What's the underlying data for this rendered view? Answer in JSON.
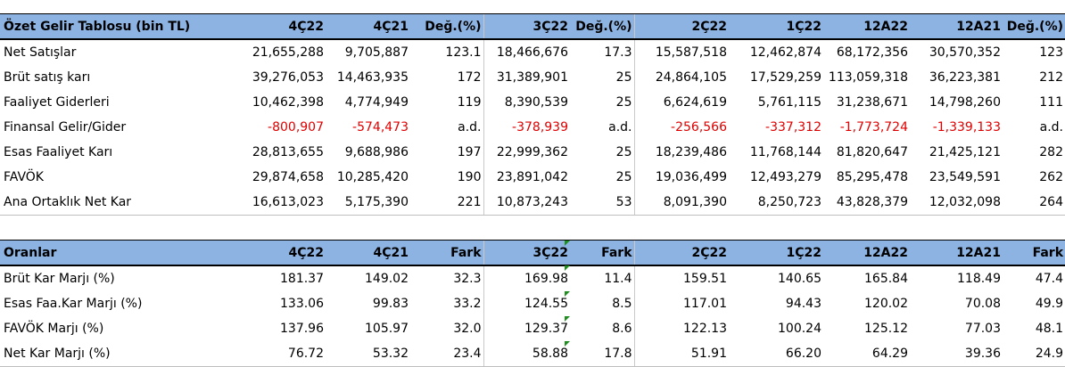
{
  "income": {
    "header": [
      "Özet Gelir Tablosu (bin TL)",
      "4Ç22",
      "4Ç21",
      "Değ.(%)",
      "3Ç22",
      "Değ.(%)",
      "2Ç22",
      "1Ç22",
      "12A22",
      "12A21",
      "Değ.(%)"
    ],
    "rows": [
      [
        "Net Satışlar",
        "21,655,288",
        "9,705,887",
        "123.1",
        "18,466,676",
        "17.3",
        "15,587,518",
        "12,462,874",
        "68,172,356",
        "30,570,352",
        "123"
      ],
      [
        "Brüt satış karı",
        "39,276,053",
        "14,463,935",
        "172",
        "31,389,901",
        "25",
        "24,864,105",
        "17,529,259",
        "113,059,318",
        "36,223,381",
        "212"
      ],
      [
        "Faaliyet Giderleri",
        "10,462,398",
        "4,774,949",
        "119",
        "8,390,539",
        "25",
        "6,624,619",
        "5,761,115",
        "31,238,671",
        "14,798,260",
        "111"
      ],
      [
        "Finansal Gelir/Gider",
        "-800,907",
        "-574,473",
        "a.d.",
        "-378,939",
        "a.d.",
        "-256,566",
        "-337,312",
        "-1,773,724",
        "-1,339,133",
        "a.d."
      ],
      [
        "Esas Faaliyet Karı",
        "28,813,655",
        "9,688,986",
        "197",
        "22,999,362",
        "25",
        "18,239,486",
        "11,768,144",
        "81,820,647",
        "21,425,121",
        "282"
      ],
      [
        "FAVÖK",
        "29,874,658",
        "10,285,420",
        "190",
        "23,891,042",
        "25",
        "19,036,499",
        "12,493,279",
        "85,295,478",
        "23,549,591",
        "262"
      ],
      [
        "Ana Ortaklık Net Kar",
        "16,613,023",
        "5,175,390",
        "221",
        "10,873,243",
        "53",
        "8,091,390",
        "8,250,723",
        "43,828,379",
        "12,032,098",
        "264"
      ]
    ]
  },
  "ratios": {
    "header": [
      "Oranlar",
      "4Ç22",
      "4Ç21",
      "Fark",
      "3Ç22",
      "Fark",
      "2Ç22",
      "1Ç22",
      "12A22",
      "12A21",
      "Fark"
    ],
    "rows": [
      [
        "Brüt Kar Marjı (%)",
        "181.37",
        "149.02",
        "32.3",
        "169.98",
        "11.4",
        "159.51",
        "140.65",
        "165.84",
        "118.49",
        "47.4"
      ],
      [
        "Esas Faa.Kar Marjı (%)",
        "133.06",
        "99.83",
        "33.2",
        "124.55",
        "8.5",
        "117.01",
        "94.43",
        "120.02",
        "70.08",
        "49.9"
      ],
      [
        "FAVÖK Marjı (%)",
        "137.96",
        "105.97",
        "32.0",
        "129.37",
        "8.6",
        "122.13",
        "100.24",
        "125.12",
        "77.03",
        "48.1"
      ],
      [
        "Net Kar Marjı (%)",
        "76.72",
        "53.32",
        "23.4",
        "58.88",
        "17.8",
        "51.91",
        "66.20",
        "64.29",
        "39.36",
        "24.9"
      ]
    ]
  },
  "colors": {
    "header_bg": "#8db3e2",
    "negative": "#e00000",
    "cell_marker": "#1e8f1e"
  }
}
